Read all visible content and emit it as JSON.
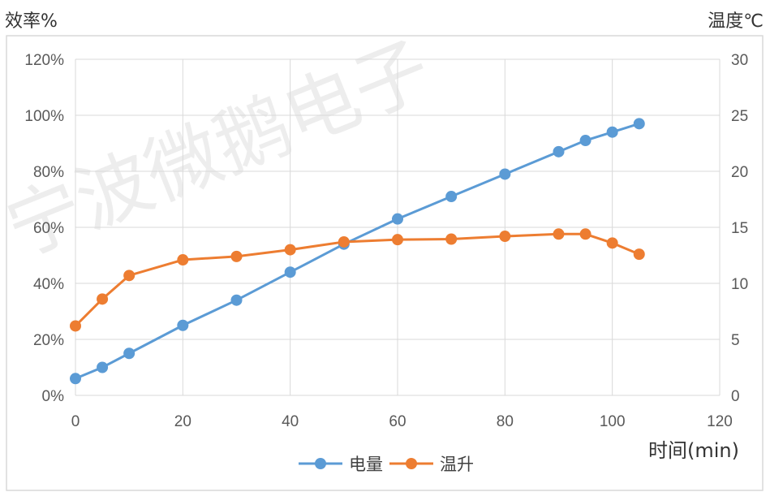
{
  "axis_titles": {
    "left": "效率%",
    "right": "温度℃",
    "x": "时间(min)"
  },
  "watermark": "宁波微鹅电子",
  "colors": {
    "series_electric": "#5b9bd5",
    "series_temp": "#ed7d31",
    "grid": "#d9d9d9"
  },
  "chart_data": {
    "type": "line",
    "xlabel": "时间(min)",
    "ylabel": "效率%",
    "y2label": "温度℃",
    "xlim": [
      0,
      120
    ],
    "ylim": [
      0,
      120
    ],
    "y2lim": [
      0,
      30
    ],
    "x_ticks": [
      0,
      20,
      40,
      60,
      80,
      100,
      120
    ],
    "y_ticks": [
      "0%",
      "20%",
      "40%",
      "60%",
      "80%",
      "100%",
      "120%"
    ],
    "y2_ticks": [
      0,
      5,
      10,
      15,
      20,
      25,
      30
    ],
    "grid": true,
    "legend": "bottom",
    "series": [
      {
        "name": "电量",
        "axis": "left",
        "x": [
          0,
          5,
          10,
          20,
          30,
          40,
          50,
          60,
          70,
          80,
          90,
          95,
          100,
          105
        ],
        "y": [
          6,
          10,
          15,
          25,
          34,
          44,
          54,
          63,
          71,
          79,
          87,
          91,
          94,
          97
        ]
      },
      {
        "name": "温升",
        "axis": "right",
        "x": [
          0,
          5,
          10,
          20,
          30,
          40,
          50,
          60,
          70,
          80,
          90,
          95,
          100,
          105
        ],
        "y": [
          6.2,
          8.6,
          10.7,
          12.1,
          12.4,
          13.0,
          13.7,
          13.9,
          13.95,
          14.2,
          14.4,
          14.4,
          13.6,
          12.6
        ]
      }
    ]
  }
}
